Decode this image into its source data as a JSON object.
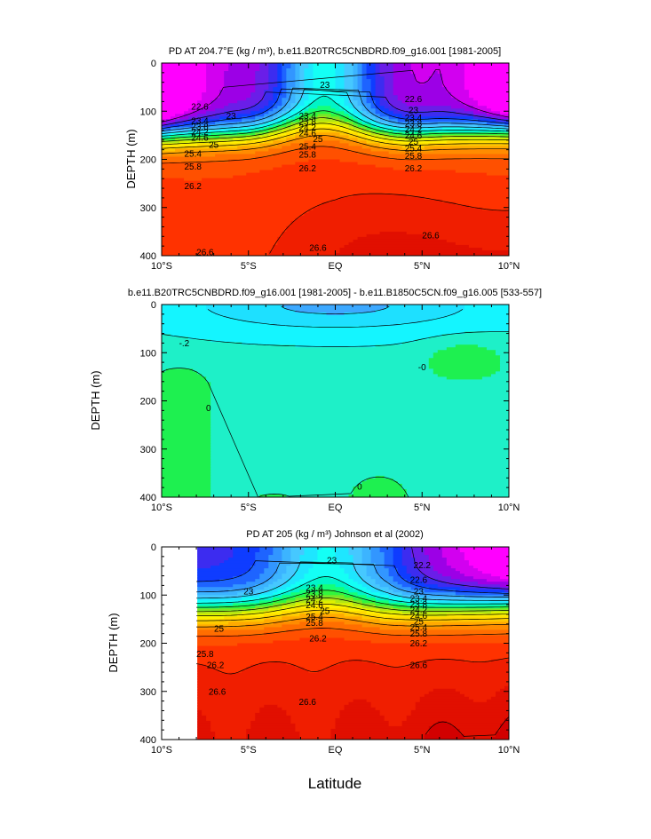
{
  "figure": {
    "xlabel": "Latitude",
    "colors": {
      "palette": [
        "#ff00ff",
        "#d200f0",
        "#9c00e6",
        "#6a1ee8",
        "#3c2cf0",
        "#0f3cff",
        "#1e64ff",
        "#3296ff",
        "#3cb4ff",
        "#46c8ff",
        "#1ee6ff",
        "#14fff5",
        "#00f5c8",
        "#14ff78",
        "#32f53c",
        "#78e628",
        "#b4e614",
        "#dcf000",
        "#fff000",
        "#ffdc00",
        "#ffc800",
        "#ffaa00",
        "#ff8c00",
        "#ff6e00",
        "#ff5000",
        "#ff3200",
        "#f01e00",
        "#e10f00",
        "#d20000",
        "#c30000"
      ],
      "diff_palette": [
        "#3ca8ff",
        "#1ee0ff",
        "#14f5ff",
        "#1ef0c8",
        "#1ef050"
      ]
    }
  },
  "chart_data": [
    {
      "type": "contour",
      "title": "PD AT 204.7°E (kg / m³), b.e11.B20TRC5CNBDRD.f09_g16.001 [1981-2005]",
      "xlabel": "",
      "ylabel": "DEPTH (m)",
      "xlim": [
        -10,
        10
      ],
      "ylim": [
        400,
        0
      ],
      "x_ticks": [
        "10°S",
        "5°S",
        "EQ",
        "5°N",
        "10°N"
      ],
      "y_ticks": [
        "0",
        "100",
        "200",
        "300",
        "400"
      ],
      "contour_interval": 0.4,
      "contour_labels": [
        {
          "text": "23",
          "lat": -0.6,
          "depth": 45
        },
        {
          "text": "22.6",
          "lat": -7.8,
          "depth": 90
        },
        {
          "text": "23",
          "lat": -6.0,
          "depth": 110
        },
        {
          "text": "23.4",
          "lat": -7.8,
          "depth": 120
        },
        {
          "text": "23.8",
          "lat": -7.8,
          "depth": 132
        },
        {
          "text": "24.2",
          "lat": -7.8,
          "depth": 143
        },
        {
          "text": "24.6",
          "lat": -7.8,
          "depth": 155
        },
        {
          "text": "25",
          "lat": -7.0,
          "depth": 170
        },
        {
          "text": "25.4",
          "lat": -8.2,
          "depth": 188
        },
        {
          "text": "25.8",
          "lat": -8.2,
          "depth": 215
        },
        {
          "text": "26.2",
          "lat": -8.2,
          "depth": 255
        },
        {
          "text": "26.6",
          "lat": -7.5,
          "depth": 393
        },
        {
          "text": "23.4",
          "lat": -1.6,
          "depth": 110
        },
        {
          "text": "23.8",
          "lat": -1.6,
          "depth": 122
        },
        {
          "text": "24.2",
          "lat": -1.6,
          "depth": 134
        },
        {
          "text": "24.6",
          "lat": -1.6,
          "depth": 146
        },
        {
          "text": "25",
          "lat": -1.0,
          "depth": 158
        },
        {
          "text": "25.4",
          "lat": -1.6,
          "depth": 173
        },
        {
          "text": "25.8",
          "lat": -1.6,
          "depth": 190
        },
        {
          "text": "26.2",
          "lat": -1.6,
          "depth": 218
        },
        {
          "text": "26.6",
          "lat": -1.0,
          "depth": 383
        },
        {
          "text": "22.6",
          "lat": 4.5,
          "depth": 75
        },
        {
          "text": "23",
          "lat": 4.5,
          "depth": 98
        },
        {
          "text": "23.4",
          "lat": 4.5,
          "depth": 113
        },
        {
          "text": "23.8",
          "lat": 4.5,
          "depth": 125
        },
        {
          "text": "24.2",
          "lat": 4.5,
          "depth": 137
        },
        {
          "text": "24.6",
          "lat": 4.5,
          "depth": 150
        },
        {
          "text": "25",
          "lat": 4.5,
          "depth": 163
        },
        {
          "text": "25.4",
          "lat": 4.5,
          "depth": 177
        },
        {
          "text": "25.8",
          "lat": 4.5,
          "depth": 193
        },
        {
          "text": "26.2",
          "lat": 4.5,
          "depth": 218
        },
        {
          "text": "26.6",
          "lat": 5.5,
          "depth": 358
        }
      ]
    },
    {
      "type": "contour",
      "title": "b.e11.B20TRC5CNBDRD.f09_g16.001 [1981-2005] - b.e11.B1850C5CN.f09_g16.005 [533-557]",
      "xlabel": "",
      "ylabel": "DEPTH (m)",
      "xlim": [
        -10,
        10
      ],
      "ylim": [
        400,
        0
      ],
      "x_ticks": [
        "10°S",
        "5°S",
        "EQ",
        "5°N",
        "10°N"
      ],
      "y_ticks": [
        "0",
        "100",
        "200",
        "300",
        "400"
      ],
      "contour_labels": [
        {
          "text": "-.2",
          "lat": -8.7,
          "depth": 80
        },
        {
          "text": "0",
          "lat": -7.3,
          "depth": 215
        },
        {
          "text": "-0",
          "lat": 5.0,
          "depth": 130
        },
        {
          "text": "0",
          "lat": 1.4,
          "depth": 378
        }
      ]
    },
    {
      "type": "contour",
      "title": "PD AT 205 (kg / m³) Johnson et al (2002)",
      "xlabel": "",
      "ylabel": "DEPTH (m)",
      "xlim": [
        -10,
        10
      ],
      "ylim": [
        400,
        0
      ],
      "x_ticks": [
        "10°S",
        "5°S",
        "EQ",
        "5°N",
        "10°N"
      ],
      "y_ticks": [
        "0",
        "100",
        "200",
        "300",
        "400"
      ],
      "data_xlim": [
        -8,
        10
      ],
      "contour_labels": [
        {
          "text": "23",
          "lat": -0.2,
          "depth": 28
        },
        {
          "text": "22.2",
          "lat": 5.0,
          "depth": 38
        },
        {
          "text": "22.6",
          "lat": 4.8,
          "depth": 68
        },
        {
          "text": "23",
          "lat": -5.0,
          "depth": 92
        },
        {
          "text": "23",
          "lat": 4.8,
          "depth": 92
        },
        {
          "text": "23.4",
          "lat": -1.2,
          "depth": 85
        },
        {
          "text": "23.8",
          "lat": -1.2,
          "depth": 97
        },
        {
          "text": "24.2",
          "lat": -1.2,
          "depth": 109
        },
        {
          "text": "24.6",
          "lat": -1.2,
          "depth": 121
        },
        {
          "text": "25",
          "lat": -0.6,
          "depth": 133
        },
        {
          "text": "25.4",
          "lat": -1.2,
          "depth": 145
        },
        {
          "text": "25.8",
          "lat": -1.2,
          "depth": 158
        },
        {
          "text": "26.2",
          "lat": -1.0,
          "depth": 190
        },
        {
          "text": "23.4",
          "lat": 4.8,
          "depth": 107
        },
        {
          "text": "23.8",
          "lat": 4.8,
          "depth": 119
        },
        {
          "text": "24.2",
          "lat": 4.8,
          "depth": 131
        },
        {
          "text": "24.6",
          "lat": 4.8,
          "depth": 143
        },
        {
          "text": "25",
          "lat": 4.8,
          "depth": 155
        },
        {
          "text": "25.4",
          "lat": 4.8,
          "depth": 167
        },
        {
          "text": "25.8",
          "lat": 4.8,
          "depth": 180
        },
        {
          "text": "26.2",
          "lat": 4.8,
          "depth": 200
        },
        {
          "text": "25",
          "lat": -6.7,
          "depth": 170
        },
        {
          "text": "25.8",
          "lat": -7.5,
          "depth": 222
        },
        {
          "text": "26.2",
          "lat": -6.9,
          "depth": 245
        },
        {
          "text": "26.6",
          "lat": -6.8,
          "depth": 300
        },
        {
          "text": "26.6",
          "lat": -1.6,
          "depth": 322
        },
        {
          "text": "26.6",
          "lat": 4.8,
          "depth": 245
        }
      ]
    }
  ]
}
